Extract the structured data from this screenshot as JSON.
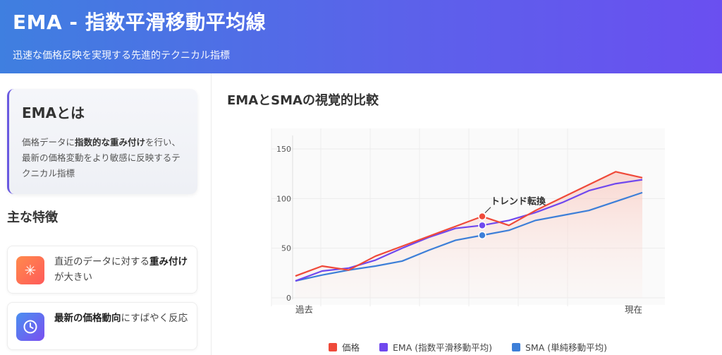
{
  "header": {
    "title": "EMA - 指数平滑移動平均線",
    "subtitle": "迅速な価格反映を実現する先進的テクニカル指標"
  },
  "sidebar": {
    "card": {
      "title": "EMAとは",
      "desc_1": "価格データに",
      "desc_bold": "指数的な重み付け",
      "desc_2": "を行い、最新の価格変動をより敏感に反映するテクニカル指標"
    },
    "section_title": "主な特徴",
    "features": [
      {
        "icon": "asterisk-icon",
        "text_1": "直近のデータに対する",
        "bold": "重み付け",
        "text_2": "が大きい",
        "color_from": "#ff8a4c",
        "color_to": "#ff5a5a"
      },
      {
        "icon": "clock-icon",
        "text_1": "",
        "bold": "最新の価格動向",
        "text_2": "にすばやく反応",
        "color_from": "#4a8ff0",
        "color_to": "#7a4ff0"
      }
    ]
  },
  "main": {
    "chart_title": "EMAとSMAの視覚的比較"
  },
  "chart_data": {
    "type": "line",
    "x": [
      0,
      1,
      2,
      3,
      4,
      5,
      6,
      7,
      8,
      9,
      10,
      11,
      12,
      13
    ],
    "x_tick_labels": {
      "start": "過去",
      "end": "現在"
    },
    "ylim": [
      0,
      150
    ],
    "yticks": [
      0,
      50,
      100,
      150
    ],
    "grid": true,
    "legend_position": "bottom",
    "series": [
      {
        "name": "価格",
        "color": "#ef4a3a",
        "values": [
          22,
          32,
          28,
          42,
          52,
          62,
          72,
          82,
          73,
          88,
          101,
          114,
          127,
          121
        ]
      },
      {
        "name": "EMA (指数平滑移動平均)",
        "color": "#7048ee",
        "values": [
          17,
          27,
          30,
          38,
          50,
          61,
          70,
          73,
          78,
          86,
          96,
          108,
          115,
          119
        ]
      },
      {
        "name": "SMA (単純移動平均)",
        "color": "#3d7fd8",
        "values": [
          17,
          23,
          28,
          32,
          37,
          48,
          58,
          63,
          68,
          78,
          83,
          88,
          97,
          106
        ]
      }
    ],
    "annotation": {
      "label": "トレンド転換",
      "x_index": 7
    }
  }
}
